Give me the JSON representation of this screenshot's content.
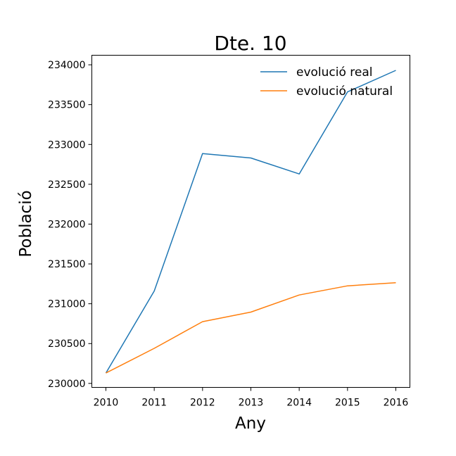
{
  "chart_data": {
    "type": "line",
    "title": "Dte. 10",
    "xlabel": "Any",
    "ylabel": "Població",
    "x": [
      2010,
      2011,
      2012,
      2013,
      2014,
      2015,
      2016
    ],
    "x_ticks": [
      "2010",
      "2011",
      "2012",
      "2013",
      "2014",
      "2015",
      "2016"
    ],
    "y_ticks": [
      "230000",
      "230500",
      "231000",
      "231500",
      "232000",
      "232500",
      "233000",
      "233500",
      "234000"
    ],
    "ylim": [
      229950,
      234120
    ],
    "grid": false,
    "legend_position": "top-right",
    "series": [
      {
        "name": "evolució real",
        "color": "#1f77b4",
        "values": [
          230130,
          231160,
          232885,
          232830,
          232630,
          233660,
          233930
        ]
      },
      {
        "name": "evolució natural",
        "color": "#ff7f0e",
        "values": [
          230130,
          230440,
          230775,
          230895,
          231110,
          231225,
          231265
        ]
      }
    ]
  }
}
